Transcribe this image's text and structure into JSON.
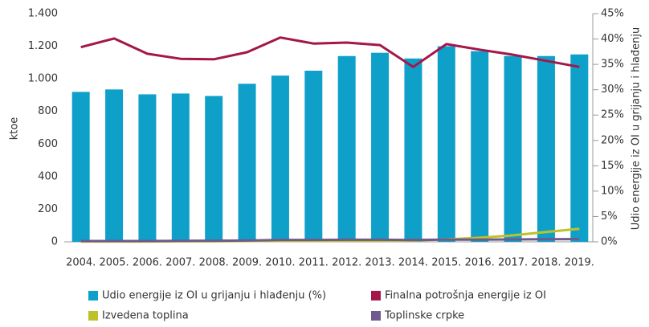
{
  "chart_data": {
    "type": "bar",
    "categories": [
      "2004.",
      "2005.",
      "2006.",
      "2007.",
      "2008.",
      "2009.",
      "2010.",
      "2011.",
      "2012.",
      "2013.",
      "2014.",
      "2015.",
      "2016.",
      "2017.",
      "2018.",
      "2019."
    ],
    "ylabel": "ktoe",
    "y2label": "Udio energije iz OI u grijanju i hlađenju",
    "ylim": [
      0,
      1400
    ],
    "yticks": [
      0,
      200,
      400,
      600,
      800,
      {
        "value": 1000,
        "label": "1.000"
      },
      {
        "value": 1200,
        "label": "1.200"
      },
      {
        "value": 1400,
        "label": "1.400"
      }
    ],
    "y2lim": [
      0,
      45
    ],
    "y2ticks": [
      {
        "value": 0,
        "label": "0%"
      },
      {
        "value": 5,
        "label": "5%"
      },
      {
        "value": 10,
        "label": "10%"
      },
      {
        "value": 15,
        "label": "15%"
      },
      {
        "value": 20,
        "label": "20%"
      },
      {
        "value": 25,
        "label": "25%"
      },
      {
        "value": 30,
        "label": "30%"
      },
      {
        "value": 35,
        "label": "35%"
      },
      {
        "value": 40,
        "label": "40%"
      },
      {
        "value": 45,
        "label": "45%"
      }
    ],
    "series": [
      {
        "name": "Udio energije iz OI u grijanju i hlađenju (%)",
        "type": "bar",
        "color": "#0fa0c9",
        "values": [
          920,
          935,
          905,
          910,
          895,
          970,
          1020,
          1050,
          1140,
          1160,
          1125,
          1200,
          1170,
          1140,
          1140,
          1150
        ]
      },
      {
        "name": "Finalna potrošnja energije iz OI",
        "type": "line",
        "axis": "y2",
        "color": "#a3174a",
        "values": [
          38.4,
          40.1,
          37.1,
          36.1,
          36.0,
          37.4,
          40.3,
          39.1,
          39.3,
          38.8,
          34.5,
          39.0,
          37.9,
          36.9,
          35.7,
          34.5
        ]
      },
      {
        "name": "Izvedena toplina",
        "type": "line",
        "color": "#bfc12a",
        "values": [
          2,
          2,
          2,
          3,
          3,
          5,
          6,
          6,
          7,
          7,
          8,
          15,
          25,
          40,
          60,
          80
        ]
      },
      {
        "name": "Toplinske crpke",
        "type": "line",
        "color": "#6e5a8c",
        "values": [
          5,
          5,
          5,
          6,
          7,
          8,
          12,
          12,
          13,
          13,
          12,
          14,
          14,
          15,
          16,
          17
        ]
      }
    ]
  }
}
